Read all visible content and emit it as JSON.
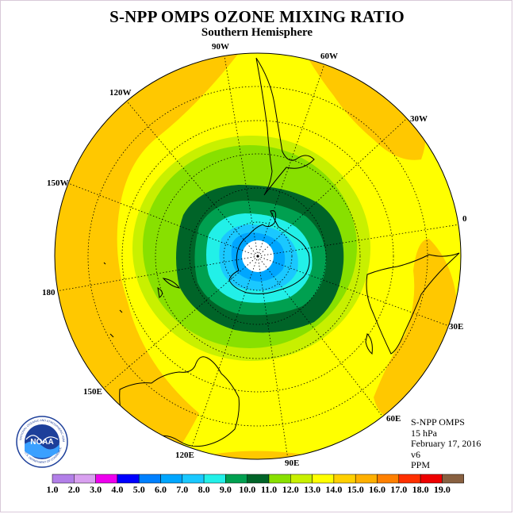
{
  "title": "S-NPP OMPS OZONE MIXING RATIO",
  "subtitle": "Southern Hemisphere",
  "info": {
    "product": "S-NPP OMPS",
    "level": "15 hPa",
    "date": "February 17, 2016",
    "version": "v6",
    "units": "PPM"
  },
  "longitude_labels": [
    "90W",
    "60W",
    "30W",
    "0",
    "30E",
    "60E",
    "90E",
    "120E",
    "150E",
    "180",
    "150W",
    "120W"
  ],
  "logo": {
    "text": "NOAA",
    "ring_text": "NATIONAL OCEANIC AND ATMOSPHERIC ADMINISTRATION",
    "ring_text_bottom": "U.S. DEPARTMENT OF COMMERCE"
  },
  "legend": {
    "ticks": [
      "1.0",
      "2.0",
      "3.0",
      "4.0",
      "5.0",
      "6.0",
      "7.0",
      "8.0",
      "9.0",
      "10.0",
      "11.0",
      "12.0",
      "13.0",
      "14.0",
      "15.0",
      "16.0",
      "17.0",
      "18.0",
      "19.0"
    ],
    "colors": [
      "#b27fe8",
      "#d9a0f0",
      "#ee00ee",
      "#0000ff",
      "#0080ff",
      "#00a6ff",
      "#1ac8ff",
      "#22f0e8",
      "#00a050",
      "#006428",
      "#88e000",
      "#c8f000",
      "#ffff00",
      "#ffd000",
      "#ffb000",
      "#ff8000",
      "#ff3000",
      "#ee0000",
      "#886040"
    ]
  },
  "colors": {
    "yellow": "#ffff00",
    "orange": "#ffc800",
    "green_light": "#c8f000",
    "green": "#88e000",
    "dark_green": "#006428",
    "green_mid": "#00a050",
    "cyan": "#22f0e8",
    "light_blue": "#1ac8ff",
    "blue": "#00a6ff"
  }
}
